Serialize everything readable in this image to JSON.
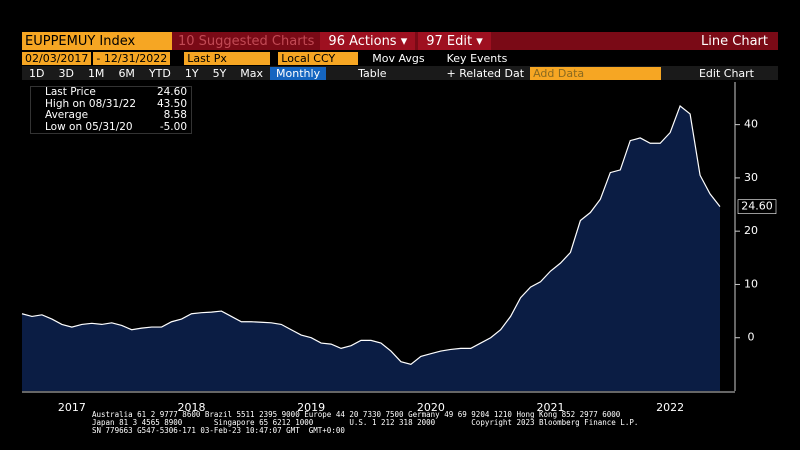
{
  "toolbar": {
    "ticker": "EUPPEMUY Index",
    "suggested": "10 Suggested Charts",
    "actions": "96 Actions ▾",
    "edit": "97 Edit ▾",
    "chart_kind": "Line Chart",
    "start_date": "02/03/2017",
    "end_date": "- 12/31/2022",
    "field": "Last Px",
    "currency": "Local CCY",
    "mov_avgs": "Mov Avgs",
    "key_events": "Key Events",
    "periods": [
      "1D",
      "3D",
      "1M",
      "6M",
      "YTD",
      "1Y",
      "5Y",
      "Max"
    ],
    "frequency": "Monthly",
    "table": "Table",
    "related": "+ Related Dat",
    "add_data": "Add Data",
    "edit_chart": "Edit Chart"
  },
  "legend": {
    "rows": [
      [
        "Last Price",
        "24.60"
      ],
      [
        "High on 08/31/22",
        "43.50"
      ],
      [
        "Average",
        "8.58"
      ],
      [
        "Low on 05/31/20",
        "-5.00"
      ]
    ]
  },
  "chart_data": {
    "type": "area",
    "categories": [
      null,
      null,
      null,
      null,
      null,
      "2017",
      null,
      null,
      null,
      null,
      null,
      null,
      null,
      null,
      null,
      null,
      null,
      "2018",
      null,
      null,
      null,
      null,
      null,
      null,
      null,
      null,
      null,
      null,
      null,
      "2019",
      null,
      null,
      null,
      null,
      null,
      null,
      null,
      null,
      null,
      null,
      null,
      "2020",
      null,
      null,
      null,
      null,
      null,
      null,
      null,
      null,
      null,
      null,
      null,
      "2021",
      null,
      null,
      null,
      null,
      null,
      null,
      null,
      null,
      null,
      null,
      null,
      "2022",
      null,
      null,
      null,
      null,
      null
    ],
    "values": [
      4.5,
      4.0,
      4.3,
      3.5,
      2.5,
      2.0,
      2.5,
      2.7,
      2.5,
      2.8,
      2.3,
      1.5,
      1.8,
      2.0,
      2.0,
      3.0,
      3.5,
      4.5,
      4.7,
      4.8,
      5.0,
      4.0,
      3.0,
      3.0,
      2.9,
      2.8,
      2.5,
      1.5,
      0.5,
      0,
      -1.0,
      -1.2,
      -2.0,
      -1.5,
      -0.5,
      -0.5,
      -1.0,
      -2.5,
      -4.5,
      -5.0,
      -3.5,
      -3.0,
      -2.5,
      -2.2,
      -2.0,
      -2.0,
      -1.0,
      0,
      1.5,
      4.0,
      7.5,
      9.5,
      10.5,
      12.5,
      14.0,
      16.0,
      22.0,
      23.5,
      26.0,
      31.0,
      31.5,
      37.0,
      37.5,
      36.5,
      36.5,
      38.5,
      43.5,
      42.0,
      30.5,
      27.0,
      24.6
    ],
    "last_label": "24.60",
    "color": "#0b1d44",
    "line_color": "#ffffff",
    "ylim": [
      -10,
      48
    ],
    "yticks": [
      0,
      10,
      20,
      30,
      40
    ]
  },
  "footer": [
    "Australia 61 2 9777 8600 Brazil 5511 2395 9000 Europe 44 20 7330 7500 Germany 49 69 9204 1210 Hong Kong 852 2977 6000",
    "Japan 81 3 4565 8900       Singapore 65 6212 1000        U.S. 1 212 318 2000        Copyright 2023 Bloomberg Finance L.P.",
    "SN 779663 G547-5306-171 03-Feb-23 10:47:07 GMT  GMT+0:00"
  ]
}
